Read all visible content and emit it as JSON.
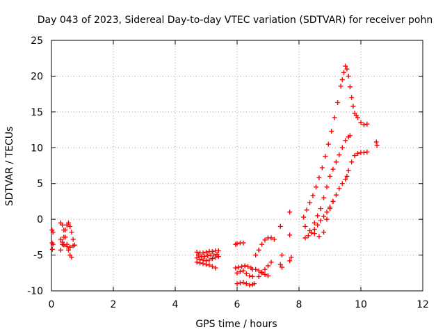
{
  "chart_data": {
    "type": "scatter",
    "title": "Day 043 of 2023, Sidereal Day-to-day VTEC variation (SDTVAR) for receiver pohn",
    "xlabel": "GPS time / hours",
    "ylabel": "SDTVAR / TECUs",
    "xlim": [
      0,
      12
    ],
    "ylim": [
      -10,
      25
    ],
    "xticks": [
      0,
      2,
      4,
      6,
      8,
      10,
      12
    ],
    "yticks": [
      -10,
      -5,
      0,
      5,
      10,
      15,
      20,
      25
    ],
    "grid": true,
    "legend": "none",
    "marker": "+",
    "color": "#ff0000",
    "series": [
      {
        "name": "SDTVAR",
        "x": [
          0.02,
          0.02,
          0.03,
          0.05,
          0.05,
          0.3,
          0.35,
          0.4,
          0.45,
          0.5,
          0.55,
          0.6,
          0.65,
          0.7,
          0.3,
          0.35,
          0.4,
          0.45,
          0.5,
          0.55,
          0.6,
          0.65,
          0.3,
          0.35,
          0.4,
          0.5,
          0.6,
          0.7,
          0.75,
          4.7,
          4.8,
          4.9,
          5.0,
          5.1,
          5.2,
          5.3,
          5.4,
          4.7,
          4.8,
          4.9,
          5.0,
          5.1,
          5.2,
          5.3,
          5.4,
          4.7,
          4.8,
          4.9,
          5.0,
          5.1,
          5.2,
          5.3,
          4.75,
          4.85,
          4.95,
          5.05,
          5.15,
          5.25,
          5.35,
          5.95,
          6.0,
          6.1,
          6.2,
          5.95,
          6.05,
          6.15,
          6.25,
          6.35,
          6.45,
          6.5,
          6.0,
          6.1,
          6.2,
          6.3,
          6.4,
          6.5,
          6.0,
          6.1,
          6.2,
          6.3,
          6.4,
          6.5,
          6.55,
          6.6,
          6.7,
          6.8,
          6.9,
          7.0,
          7.1,
          7.2,
          6.6,
          6.7,
          6.8,
          6.9,
          7.0,
          6.7,
          6.8,
          6.9,
          7.0,
          7.1,
          7.4,
          7.45,
          7.4,
          7.45,
          7.7,
          7.7,
          7.75,
          7.7,
          8.15,
          8.25,
          8.35,
          8.45,
          8.55,
          8.65,
          8.75,
          8.85,
          8.95,
          9.05,
          9.15,
          9.25,
          9.35,
          9.4,
          9.45,
          9.5,
          9.55,
          9.6,
          9.65,
          9.7,
          9.75,
          9.8,
          9.85,
          9.9,
          10.0,
          10.1,
          10.2,
          8.2,
          8.3,
          8.4,
          8.5,
          8.6,
          8.7,
          8.8,
          8.9,
          9.0,
          9.1,
          9.2,
          9.3,
          9.4,
          9.5,
          9.55,
          9.6,
          9.7,
          9.8,
          9.9,
          10.0,
          10.1,
          10.2,
          8.5,
          8.6,
          8.7,
          8.8,
          8.9,
          9.0,
          9.1,
          9.2,
          9.3,
          9.4,
          9.5,
          9.6,
          9.65,
          8.2,
          8.35,
          8.5,
          8.65,
          8.8,
          8.9,
          9.0,
          9.1,
          10.5,
          10.52
        ],
        "y": [
          -1.5,
          -3.3,
          -4.2,
          -3.5,
          -1.8,
          -4.3,
          -3.5,
          -2.5,
          -1.5,
          -0.8,
          -0.5,
          -1.0,
          -1.8,
          -2.8,
          -0.5,
          -0.8,
          -1.5,
          -2.5,
          -3.5,
          -4.3,
          -5.0,
          -5.3,
          -2.8,
          -3.2,
          -3.6,
          -3.8,
          -3.9,
          -3.7,
          -3.6,
          -4.6,
          -4.7,
          -4.7,
          -4.6,
          -4.5,
          -4.5,
          -4.4,
          -4.4,
          -5.4,
          -5.6,
          -5.7,
          -5.8,
          -5.7,
          -5.5,
          -5.3,
          -5.2,
          -6.0,
          -6.1,
          -6.2,
          -6.3,
          -6.4,
          -6.6,
          -6.8,
          -5.0,
          -5.2,
          -5.2,
          -5.1,
          -5.0,
          -5.0,
          -4.9,
          -3.5,
          -3.4,
          -3.3,
          -3.3,
          -6.8,
          -6.7,
          -6.6,
          -6.5,
          -6.6,
          -6.8,
          -7.0,
          -7.5,
          -7.3,
          -7.2,
          -7.6,
          -7.9,
          -8.0,
          -9.0,
          -8.9,
          -8.8,
          -9.0,
          -9.2,
          -9.1,
          -9.0,
          -5.0,
          -4.3,
          -3.5,
          -2.9,
          -2.6,
          -2.6,
          -2.8,
          -7.0,
          -7.2,
          -7.4,
          -7.7,
          -7.9,
          -8.0,
          -7.5,
          -7.0,
          -6.5,
          -6.0,
          -1.0,
          -5.0,
          -6.3,
          -6.7,
          1.0,
          -2.2,
          -5.3,
          -5.8,
          0.3,
          1.3,
          2.3,
          3.3,
          4.5,
          5.8,
          7.2,
          8.8,
          10.5,
          12.3,
          14.2,
          16.3,
          18.6,
          19.5,
          20.5,
          21.4,
          21.0,
          20.0,
          18.5,
          17.0,
          15.8,
          14.8,
          14.5,
          14.2,
          13.5,
          13.2,
          13.3,
          -2.6,
          -2.3,
          -1.9,
          -1.4,
          -0.8,
          -0.2,
          0.4,
          1.0,
          1.7,
          2.5,
          3.4,
          4.3,
          5.0,
          5.6,
          6.0,
          6.8,
          8.0,
          8.9,
          9.2,
          9.3,
          9.3,
          9.4,
          -0.5,
          0.5,
          1.5,
          3.0,
          4.5,
          6.0,
          7.0,
          8.0,
          9.0,
          10.0,
          11.0,
          11.5,
          11.7,
          -1.0,
          -1.6,
          -2.0,
          -2.4,
          -1.8,
          0.0,
          1.5,
          2.5,
          10.8,
          10.3
        ]
      }
    ]
  }
}
